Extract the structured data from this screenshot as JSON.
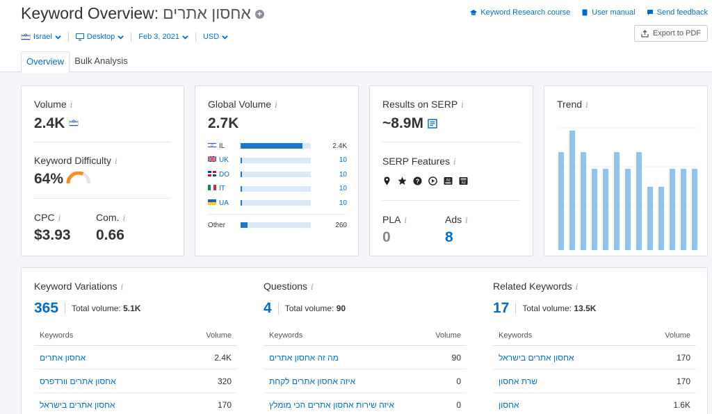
{
  "header": {
    "title": "Keyword Overview:",
    "keyword": "אחסון אתרים",
    "links": {
      "course": "Keyword Research course",
      "manual": "User manual",
      "feedback": "Send feedback"
    },
    "export_label": "Export to PDF"
  },
  "filters": {
    "country": "Israel",
    "device": "Desktop",
    "date": "Feb 3, 2021",
    "currency": "USD"
  },
  "tabs": [
    "Overview",
    "Bulk Analysis"
  ],
  "volume": {
    "label": "Volume",
    "value": "2.4K"
  },
  "kd": {
    "label": "Keyword Difficulty",
    "value": "64%",
    "percent": 64,
    "color": "#ff8c1a"
  },
  "cpc": {
    "label": "CPC",
    "value": "$3.93"
  },
  "com": {
    "label": "Com.",
    "value": "0.66"
  },
  "global": {
    "label": "Global Volume",
    "value": "2.7K",
    "countries": [
      {
        "code": "IL",
        "value": "2.4K",
        "share": 0.88
      },
      {
        "code": "UK",
        "value": "10",
        "share": 0.01
      },
      {
        "code": "DO",
        "value": "10",
        "share": 0.01
      },
      {
        "code": "IT",
        "value": "10",
        "share": 0.01
      },
      {
        "code": "UA",
        "value": "10",
        "share": 0.01
      }
    ],
    "other": {
      "label": "Other",
      "value": "260",
      "share": 0.1
    }
  },
  "serp": {
    "label": "Results on SERP",
    "value": "~8.9M"
  },
  "serp_features": {
    "label": "SERP Features",
    "icons": [
      "location-pin-icon",
      "star-icon",
      "question-icon",
      "play-icon",
      "ad-top-icon",
      "ad-bottom-icon"
    ]
  },
  "pla": {
    "label": "PLA",
    "value": "0"
  },
  "ads": {
    "label": "Ads",
    "value": "8"
  },
  "trend": {
    "label": "Trend",
    "chart_data": {
      "type": "bar",
      "values": [
        0.82,
        1.0,
        0.82,
        0.68,
        0.68,
        0.82,
        0.68,
        0.82,
        0.53,
        0.53,
        0.68,
        0.68,
        0.68
      ],
      "color": "#8fc4ef"
    }
  },
  "variations": {
    "label": "Keyword Variations",
    "count": "365",
    "total_label": "Total volume:",
    "total": "5.1K",
    "col_kw": "Keywords",
    "col_vol": "Volume",
    "rows": [
      {
        "kw": "אחסון אתרים",
        "vol": "2.4K"
      },
      {
        "kw": "אחסון אתרים וורדפרס",
        "vol": "320"
      },
      {
        "kw": "אחסון אתרים בישראל",
        "vol": "170"
      }
    ]
  },
  "questions": {
    "label": "Questions",
    "count": "4",
    "total_label": "Total volume:",
    "total": "90",
    "col_kw": "Keywords",
    "col_vol": "Volume",
    "rows": [
      {
        "kw": "מה זה אחסון אתרים",
        "vol": "90"
      },
      {
        "kw": "איזה אחסון אתרים לקחת",
        "vol": "0"
      },
      {
        "kw": "איזה שירות אחסון אתרים הכי מומלץ",
        "vol": "0"
      }
    ]
  },
  "related": {
    "label": "Related Keywords",
    "count": "17",
    "total_label": "Total volume:",
    "total": "13.5K",
    "col_kw": "Keywords",
    "col_vol": "Volume",
    "rows": [
      {
        "kw": "אחסון אתרים בישראל",
        "vol": "170"
      },
      {
        "kw": "שרת אחסון",
        "vol": "170"
      },
      {
        "kw": "אחסון",
        "vol": "1.6K"
      }
    ]
  }
}
